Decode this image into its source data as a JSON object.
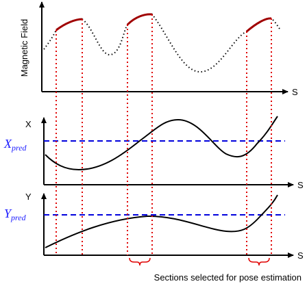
{
  "panels": {
    "magnetic": {
      "y_label": "Magnetic Field",
      "x_label": "S"
    },
    "x_panel": {
      "y_label": "X",
      "x_label": "S",
      "pred_main": "X",
      "pred_sub": "pred"
    },
    "y_panel": {
      "y_label": "Y",
      "x_label": "S",
      "pred_main": "Y",
      "pred_sub": "pred"
    }
  },
  "caption": "Sections selected for pose estimation",
  "colors": {
    "curve": "#000000",
    "highlight": "#a00000",
    "section_lines": "#e00000",
    "prediction_line": "#0000dd",
    "brace": "#e00000"
  }
}
